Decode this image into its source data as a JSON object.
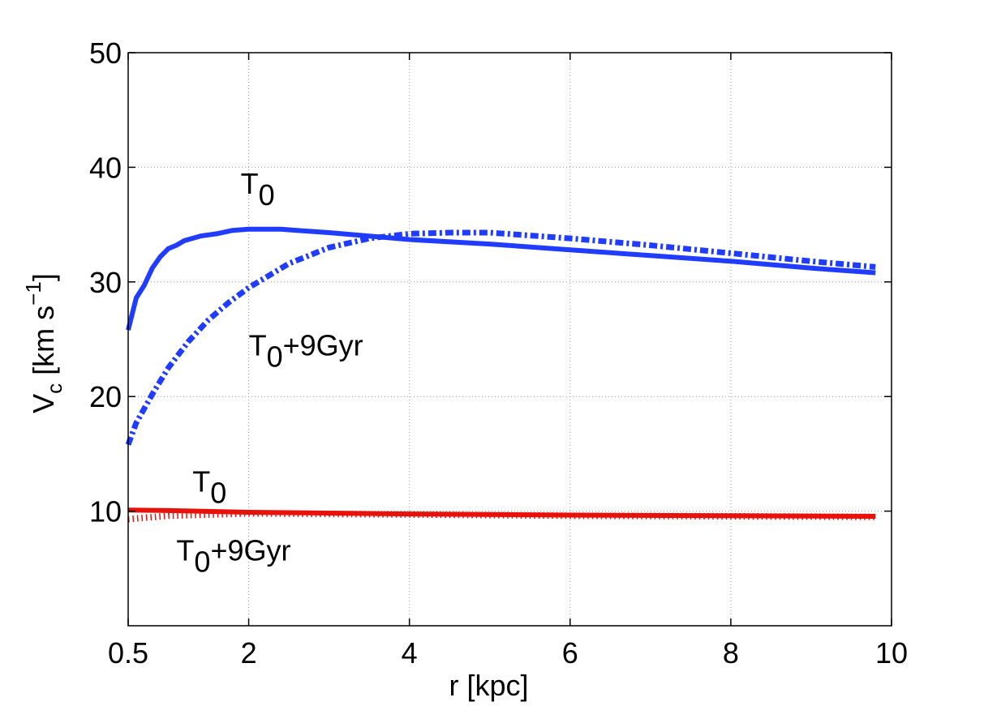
{
  "chart_data": {
    "type": "line",
    "xlabel": "r [kpc]",
    "ylabel": {
      "main": "V",
      "sub": "c",
      "unit": " [km s",
      "sup": "−1",
      "close": "]"
    },
    "xlim": [
      0.5,
      10
    ],
    "ylim": [
      0,
      50
    ],
    "xticks": [
      0.5,
      2,
      4,
      6,
      8,
      10
    ],
    "xtick_labels": [
      "0.5",
      "2",
      "4",
      "6",
      "8",
      "10"
    ],
    "yticks": [
      10,
      20,
      30,
      40,
      50
    ],
    "ytick_labels": [
      "10",
      "20",
      "30",
      "40",
      "50"
    ],
    "grid": true,
    "series": [
      {
        "color": "#1f3cff",
        "style": "solid",
        "x": [
          0.5,
          0.6,
          0.7,
          0.8,
          0.9,
          1.0,
          1.1,
          1.2,
          1.4,
          1.6,
          1.8,
          2.0,
          2.2,
          2.4,
          2.6,
          2.8,
          3.0,
          3.5,
          4.0,
          5.0,
          6.0,
          7.0,
          8.0,
          9.0,
          9.8
        ],
        "values": [
          25.8,
          28.6,
          29.7,
          31.2,
          32.2,
          32.9,
          33.2,
          33.6,
          34.0,
          34.2,
          34.5,
          34.6,
          34.6,
          34.6,
          34.5,
          34.4,
          34.3,
          34.0,
          33.7,
          33.3,
          32.8,
          32.3,
          31.8,
          31.2,
          30.8
        ]
      },
      {
        "color": "#1f3cff",
        "style": "dashdot",
        "x": [
          0.5,
          0.6,
          0.8,
          1.0,
          1.25,
          1.5,
          1.75,
          2.0,
          2.5,
          3.0,
          3.5,
          4.0,
          4.5,
          5.0,
          6.0,
          7.0,
          8.0,
          9.0,
          9.8
        ],
        "values": [
          15.8,
          17.7,
          20.2,
          22.5,
          24.8,
          26.7,
          28.2,
          29.5,
          31.6,
          33.0,
          33.8,
          34.2,
          34.3,
          34.3,
          33.8,
          33.2,
          32.5,
          31.8,
          31.3
        ]
      },
      {
        "color": "#e8120c",
        "style": "solid",
        "x": [
          0.5,
          1.0,
          2.0,
          4.0,
          6.0,
          8.0,
          9.8
        ],
        "values": [
          10.1,
          10.05,
          9.9,
          9.75,
          9.65,
          9.6,
          9.55
        ]
      },
      {
        "color": "#e8120c",
        "style": "dotted",
        "x": [
          0.5,
          1.0,
          2.0,
          4.0,
          6.0,
          8.0,
          9.8
        ],
        "values": [
          9.3,
          9.6,
          9.8,
          9.7,
          9.6,
          9.55,
          9.5
        ]
      }
    ],
    "annotations": [
      {
        "main": "T",
        "sub": "0",
        "rest": "",
        "x": 1.9,
        "y": 37.7
      },
      {
        "main": "T",
        "sub": "0",
        "rest": "+9Gyr",
        "x": 2.0,
        "y": 23.6
      },
      {
        "main": "T",
        "sub": "0",
        "rest": "",
        "x": 1.3,
        "y": 11.7
      },
      {
        "main": "T",
        "sub": "0",
        "rest": "+9Gyr",
        "x": 1.1,
        "y": 5.7
      }
    ]
  }
}
